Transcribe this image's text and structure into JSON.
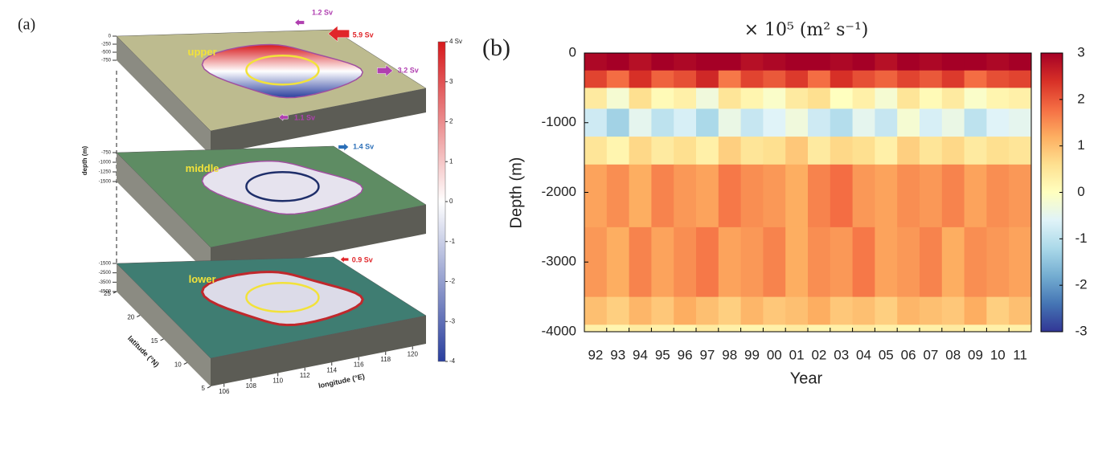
{
  "chart_data": [
    {
      "type": "block3d",
      "panel_label": "(a)",
      "depth_label": "depth (m)",
      "layers": [
        {
          "name": "upper",
          "color": "#bdbb8f",
          "depth_ticks": [
            0,
            -250,
            -500,
            -750
          ]
        },
        {
          "name": "middle",
          "color": "#5e8c63",
          "depth_ticks": [
            -750,
            -1000,
            -1250,
            -1500
          ]
        },
        {
          "name": "lower",
          "color": "#3f7d72",
          "depth_ticks": [
            -1500,
            -2500,
            -3500,
            -4500
          ]
        }
      ],
      "ylabel": "latitude (°N)",
      "ylim": [
        5,
        25
      ],
      "yticks": [
        5,
        10,
        15,
        20,
        25
      ],
      "xlabel": "longitude (°E)",
      "xlim": [
        105,
        121
      ],
      "xticks": [
        106,
        108,
        110,
        112,
        114,
        116,
        118,
        120
      ],
      "fluxes": [
        {
          "value": 1.2,
          "label": "1.2 Sv",
          "color": "#b03fb0"
        },
        {
          "value": 5.9,
          "label": "5.9 Sv",
          "color": "#e0262a"
        },
        {
          "value": 3.2,
          "label": "3.2 Sv",
          "color": "#b03fb0"
        },
        {
          "value": 1.1,
          "label": "1.1 Sv",
          "color": "#b03fb0"
        },
        {
          "value": 1.4,
          "label": "1.4 Sv",
          "color": "#2b6fb8"
        },
        {
          "value": 0.9,
          "label": "0.9 Sv",
          "color": "#e0262a"
        }
      ],
      "clim": [
        -4,
        4
      ],
      "colormap": [
        "#2a3f9e",
        "#ffffff",
        "#d7191c"
      ],
      "cticks": [
        {
          "value": 4,
          "label": "4 Sv"
        },
        3,
        2,
        1,
        0,
        -1,
        -2,
        -3,
        -4
      ]
    },
    {
      "type": "heatmap",
      "panel_label": "(b)",
      "title": "× 10⁵ (m² s⁻¹)",
      "xlabel": "Year",
      "ylabel": "Depth (m)",
      "categories": [
        "92",
        "93",
        "94",
        "95",
        "96",
        "97",
        "98",
        "99",
        "00",
        "01",
        "02",
        "03",
        "04",
        "05",
        "06",
        "07",
        "08",
        "09",
        "10",
        "11"
      ],
      "ylim": [
        -4000,
        0
      ],
      "yticks": [
        -4000,
        -3000,
        -2000,
        -1000,
        0
      ],
      "y_edges": [
        0,
        -250,
        -500,
        -800,
        -1200,
        -1600,
        -2500,
        -3500,
        -3900,
        -4000
      ],
      "z": [
        [
          2.9,
          3,
          2.8,
          3,
          2.9,
          3,
          3,
          2.8,
          2.9,
          3,
          3,
          2.9,
          3,
          2.8,
          3,
          2.9,
          3,
          3,
          2.9,
          3
        ],
        [
          2.2,
          1.8,
          2.4,
          1.9,
          2.1,
          2.5,
          1.7,
          2.2,
          2.0,
          2.3,
          1.8,
          2.4,
          2.1,
          1.9,
          2.2,
          2.0,
          2.3,
          1.8,
          2.1,
          2.2
        ],
        [
          0.4,
          -0.2,
          0.6,
          0.1,
          0.3,
          -0.3,
          0.5,
          0.2,
          -0.1,
          0.4,
          0.6,
          0.0,
          0.3,
          -0.2,
          0.5,
          0.1,
          0.4,
          -0.1,
          0.2,
          0.3
        ],
        [
          -0.8,
          -1.3,
          -0.5,
          -1.0,
          -0.7,
          -1.2,
          -0.4,
          -0.9,
          -0.6,
          -0.3,
          -0.8,
          -1.1,
          -0.5,
          -0.9,
          -0.2,
          -0.7,
          -0.4,
          -1.0,
          -0.6,
          -0.5
        ],
        [
          0.5,
          0.2,
          0.7,
          0.4,
          0.6,
          0.3,
          0.8,
          0.5,
          0.6,
          0.9,
          0.4,
          0.7,
          0.6,
          0.3,
          0.8,
          0.5,
          0.7,
          0.4,
          0.6,
          0.5
        ],
        [
          1.3,
          1.5,
          1.2,
          1.6,
          1.4,
          1.3,
          1.7,
          1.5,
          1.4,
          1.2,
          1.6,
          1.8,
          1.4,
          1.3,
          1.5,
          1.4,
          1.6,
          1.3,
          1.5,
          1.4
        ],
        [
          1.4,
          1.2,
          1.6,
          1.3,
          1.5,
          1.7,
          1.3,
          1.4,
          1.6,
          1.2,
          1.5,
          1.4,
          1.7,
          1.3,
          1.4,
          1.6,
          1.2,
          1.5,
          1.4,
          1.3
        ],
        [
          1.0,
          0.8,
          1.1,
          0.9,
          1.2,
          1.0,
          0.8,
          1.1,
          0.9,
          1.0,
          1.2,
          0.9,
          1.0,
          0.8,
          1.1,
          1.0,
          0.9,
          1.2,
          0.8,
          1.0
        ],
        [
          0.3,
          0.2,
          0.4,
          0.3,
          0.2,
          0.4,
          0.3,
          0.2,
          0.3,
          0.4,
          0.2,
          0.3,
          0.4,
          0.3,
          0.2,
          0.3,
          0.4,
          0.2,
          0.3,
          0.3
        ]
      ],
      "zlim": [
        -3,
        3
      ],
      "zticks": [
        -3,
        -2,
        -1,
        0,
        1,
        2,
        3
      ],
      "colormap": [
        "#313695",
        "#4575b4",
        "#74add1",
        "#abd9e9",
        "#e0f3f8",
        "#ffffbf",
        "#fee090",
        "#fdae61",
        "#f46d43",
        "#d73027",
        "#a50026"
      ]
    }
  ]
}
